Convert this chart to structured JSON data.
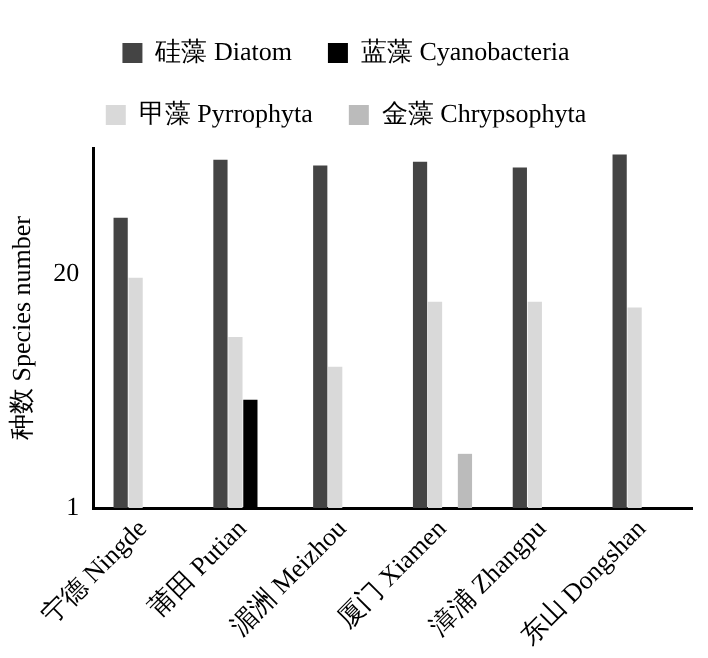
{
  "chart_data": {
    "type": "bar",
    "ylabel": "种数 Species number",
    "categories": [
      "宁德 Ningde",
      "莆田 Putian",
      "湄洲 Meizhou",
      "厦门 Xiamen",
      "漳浦 Zhangpu",
      "东山 Dongshan"
    ],
    "series": [
      {
        "name": "硅藻 Diatom",
        "color": "#444444",
        "values": [
          41,
          86,
          80,
          84,
          78,
          92
        ]
      },
      {
        "name": "甲藻 Pyrrophyta",
        "color": "#d9d9d9",
        "values": [
          19,
          8.9,
          6.1,
          14,
          14,
          13
        ]
      },
      {
        "name": "蓝藻 Cyanobacteria",
        "color": "#000000",
        "values": [
          null,
          4,
          null,
          null,
          null,
          null
        ]
      },
      {
        "name": "金藻 Chrypsophyta",
        "color": "#bbbbbb",
        "values": [
          null,
          null,
          null,
          2,
          null,
          null
        ]
      }
    ],
    "log": true,
    "ylim": [
      1,
      100
    ],
    "yticks": [
      1,
      20
    ],
    "grid": false,
    "legend": "top"
  }
}
